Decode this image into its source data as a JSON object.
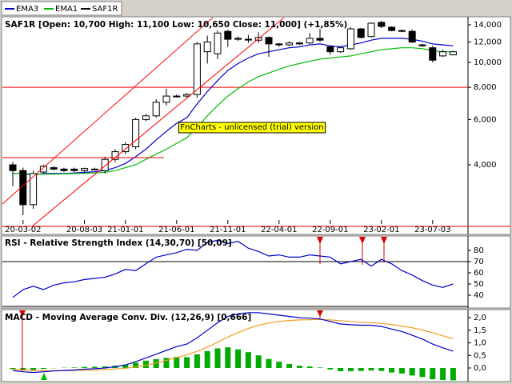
{
  "chart_data": [
    {
      "type": "candlestick",
      "title": "SAF1R [Open: 10,700  High: 11,100  Low: 10,650  Close: 11,000] (+1,85%)",
      "watermark": "FnCharts - unlicensed (trial) version",
      "categories": [
        null,
        "20-03-02",
        null,
        null,
        null,
        null,
        null,
        "20-08-03",
        null,
        null,
        null,
        "21-01-01",
        null,
        null,
        null,
        null,
        "21-06-01",
        null,
        null,
        null,
        null,
        "21-11-01",
        null,
        null,
        null,
        null,
        "22-04-01",
        null,
        null,
        null,
        null,
        "22-09-01",
        null,
        null,
        null,
        null,
        "23-02-01",
        null,
        null,
        null,
        null,
        "23-07-03",
        null,
        null
      ],
      "ohlc": {
        "name": "SAF1R",
        "color": "#000000",
        "open": [
          4000,
          3800,
          2800,
          3750,
          3900,
          3850,
          3850,
          3800,
          3850,
          3800,
          4200,
          4500,
          4700,
          6000,
          6200,
          7000,
          7400,
          7400,
          7500,
          11000,
          10800,
          13200,
          12400,
          12300,
          12200,
          12500,
          11800,
          11700,
          11900,
          11900,
          12400,
          11500,
          11000,
          11300,
          13500,
          12600,
          14300,
          13700,
          13300,
          13200,
          11700,
          11400,
          10600,
          10700
        ],
        "high": [
          4100,
          3900,
          3800,
          4000,
          3950,
          3900,
          3900,
          3900,
          3900,
          4300,
          4600,
          4900,
          6100,
          6300,
          7200,
          7900,
          7500,
          7600,
          12000,
          12700,
          13300,
          13400,
          12600,
          12800,
          13100,
          12600,
          11900,
          12100,
          12000,
          13000,
          13500,
          11600,
          11500,
          13700,
          13600,
          14300,
          14500,
          13800,
          13400,
          13400,
          11800,
          11600,
          11200,
          11100
        ],
        "low": [
          3300,
          2550,
          2700,
          3700,
          3800,
          3750,
          3750,
          3750,
          3800,
          3700,
          4100,
          4400,
          4600,
          5900,
          6100,
          6800,
          7300,
          7300,
          7300,
          9900,
          10300,
          11500,
          12100,
          11900,
          11900,
          10500,
          11500,
          11600,
          11700,
          11800,
          12000,
          10700,
          10900,
          11200,
          12400,
          12500,
          13600,
          13200,
          13100,
          11900,
          11500,
          10000,
          10500,
          10650
        ],
        "close": [
          3800,
          2800,
          3700,
          3950,
          3850,
          3800,
          3800,
          3870,
          3850,
          4200,
          4500,
          4800,
          6000,
          6200,
          7000,
          7400,
          7400,
          7500,
          11800,
          12000,
          13000,
          12300,
          12300,
          12300,
          12500,
          11800,
          11700,
          11900,
          11800,
          12400,
          12200,
          11000,
          11400,
          13500,
          12500,
          14200,
          13800,
          13300,
          13200,
          12000,
          11600,
          10200,
          11000,
          11000
        ]
      },
      "series": [
        {
          "name": "EMA3",
          "color": "#0000cc",
          "values": [
            3700,
            3700,
            3650,
            3700,
            3700,
            3700,
            3720,
            3740,
            3760,
            3800,
            3900,
            4050,
            4300,
            4600,
            5000,
            5400,
            5800,
            6100,
            6900,
            7700,
            8500,
            9300,
            9900,
            10400,
            10800,
            11000,
            11200,
            11400,
            11500,
            11700,
            11800,
            11600,
            11500,
            11700,
            11900,
            12200,
            12400,
            12400,
            12400,
            12300,
            12100,
            11800,
            11700,
            11600
          ]
        },
        {
          "name": "EMA1",
          "color": "#00bb00",
          "values": [
            3700,
            3700,
            3680,
            3680,
            3680,
            3690,
            3700,
            3710,
            3720,
            3740,
            3800,
            3900,
            4000,
            4200,
            4400,
            4600,
            4850,
            5100,
            5600,
            6200,
            6800,
            7400,
            7900,
            8400,
            8800,
            9100,
            9400,
            9700,
            9900,
            10100,
            10300,
            10400,
            10500,
            10600,
            10800,
            11000,
            11200,
            11300,
            11400,
            11400,
            11300,
            11100,
            11000,
            11000
          ]
        }
      ],
      "reference_lines": [
        {
          "value": 8000,
          "color": "#ff0000"
        }
      ],
      "log_scale": true,
      "ylim": [
        2390,
        14930
      ],
      "yticks": [
        {
          "value": 4000,
          "label": "4,000"
        },
        {
          "value": 6000,
          "label": "6,000"
        },
        {
          "value": 8000,
          "label": "8,000"
        },
        {
          "value": 10000,
          "label": "10,000"
        },
        {
          "value": 12000,
          "label": "12,000"
        },
        {
          "value": 14000,
          "label": "14,000"
        }
      ]
    },
    {
      "type": "line",
      "title": "RSI - Relative Strength Index (14,30,70) [50,09]",
      "series": [
        {
          "color": "#0000cc",
          "values": [
            38,
            45,
            48,
            45,
            49,
            51,
            52,
            54,
            55,
            56,
            59,
            63,
            62,
            68,
            74,
            76,
            78,
            81,
            80,
            87,
            89,
            86,
            88,
            82,
            79,
            75,
            76,
            74,
            74,
            76,
            75,
            74,
            68,
            70,
            72,
            66,
            72,
            68,
            62,
            58,
            53,
            49,
            47,
            50
          ]
        }
      ],
      "reference_lines": [
        {
          "value": 70,
          "color": "#000000"
        },
        {
          "value": 30,
          "color": "#000000"
        }
      ],
      "ylim": [
        29.3,
        92.1
      ],
      "yticks": [
        40,
        50,
        60,
        70,
        80
      ]
    },
    {
      "type": "combo",
      "title": "MACD - Moving Average Conv. Div. (12,26,9) [0,666]",
      "series": [
        {
          "style": "bar",
          "color": "#00aa00",
          "values": [
            -0.05,
            -0.07,
            -0.08,
            -0.04,
            -0.01,
            0.01,
            0.02,
            0.04,
            0.05,
            0.06,
            0.09,
            0.13,
            0.21,
            0.29,
            0.35,
            0.4,
            0.44,
            0.43,
            0.54,
            0.67,
            0.78,
            0.82,
            0.74,
            0.63,
            0.5,
            0.36,
            0.25,
            0.16,
            0.09,
            0.06,
            0.02,
            -0.06,
            -0.13,
            -0.13,
            -0.12,
            -0.1,
            -0.12,
            -0.18,
            -0.22,
            -0.3,
            -0.36,
            -0.45,
            -0.48,
            -0.49
          ]
        },
        {
          "style": "line",
          "color": "#f0a020",
          "values": [
            -0.05,
            -0.08,
            -0.1,
            -0.11,
            -0.11,
            -0.11,
            -0.1,
            -0.09,
            -0.08,
            -0.06,
            -0.04,
            -0.01,
            0.04,
            0.11,
            0.2,
            0.3,
            0.41,
            0.52,
            0.66,
            0.83,
            1.02,
            1.23,
            1.41,
            1.57,
            1.7,
            1.79,
            1.85,
            1.89,
            1.91,
            1.92,
            1.93,
            1.91,
            1.88,
            1.85,
            1.82,
            1.8,
            1.77,
            1.73,
            1.67,
            1.6,
            1.51,
            1.4,
            1.28,
            1.16
          ]
        },
        {
          "style": "line",
          "color": "#0000cc",
          "values": [
            -0.1,
            -0.15,
            -0.18,
            -0.15,
            -0.12,
            -0.1,
            -0.08,
            -0.05,
            -0.03,
            0,
            0.05,
            0.12,
            0.25,
            0.4,
            0.55,
            0.7,
            0.85,
            0.95,
            1.2,
            1.5,
            1.8,
            2.05,
            2.15,
            2.2,
            2.2,
            2.15,
            2.1,
            2.05,
            2.0,
            1.98,
            1.95,
            1.85,
            1.75,
            1.72,
            1.7,
            1.7,
            1.65,
            1.55,
            1.45,
            1.3,
            1.15,
            0.95,
            0.8,
            0.67
          ]
        }
      ],
      "ylim": [
        -0.51,
        2.29
      ],
      "yticks": [
        {
          "value": 0,
          "label": "0,0"
        },
        {
          "value": 0.5,
          "label": "0,5"
        },
        {
          "value": 1,
          "label": "1,0"
        },
        {
          "value": 1.5,
          "label": "1,5"
        },
        {
          "value": 2,
          "label": "2,0"
        }
      ]
    }
  ]
}
